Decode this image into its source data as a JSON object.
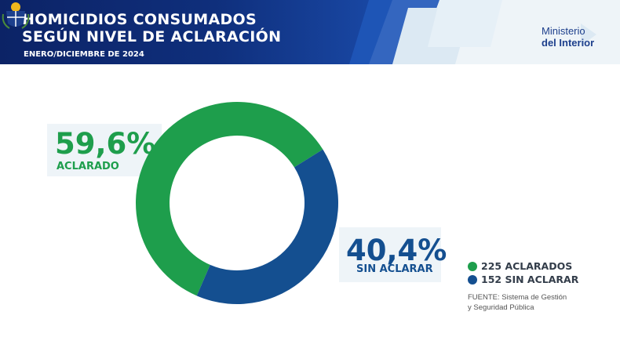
{
  "header": {
    "title_line1": "HOMICIDIOS CONSUMADOS",
    "title_line2": "SEGÚN NIVEL DE ACLARACIÓN",
    "subtitle": "ENERO/DICIEMBRE DE 2024",
    "org_line1": "Ministerio",
    "org_line2": "del Interior"
  },
  "colors": {
    "green": "#1e9e4c",
    "blue": "#144f90",
    "header_dark": "#0c2366",
    "panel": "#eef4f8"
  },
  "chart_data": {
    "type": "pie",
    "title": "HOMICIDIOS CONSUMADOS SEGÚN NIVEL DE ACLARACIÓN",
    "subtitle": "ENERO/DICIEMBRE DE 2024",
    "slices": [
      {
        "label": "ACLARADO",
        "percent_label": "59,6%",
        "value": 59.6,
        "count": 225,
        "legend": "225 ACLARADOS",
        "color": "#1e9e4c"
      },
      {
        "label": "SIN ACLARAR",
        "percent_label": "40,4%",
        "value": 40.4,
        "count": 152,
        "legend": "152 SIN ACLARAR",
        "color": "#144f90"
      }
    ]
  },
  "source_line1": "FUENTE: Sistema de Gestión",
  "source_line2": "y Seguridad Pública"
}
